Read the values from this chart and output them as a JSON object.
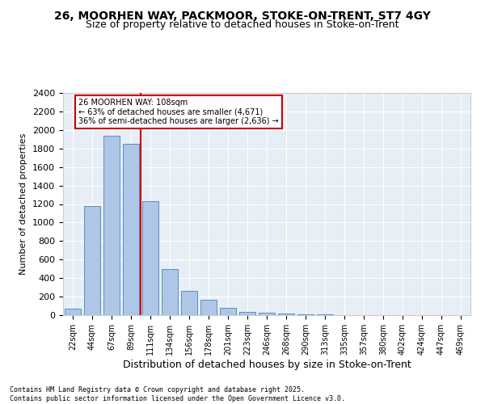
{
  "title": "26, MOORHEN WAY, PACKMOOR, STOKE-ON-TRENT, ST7 4GY",
  "subtitle": "Size of property relative to detached houses in Stoke-on-Trent",
  "xlabel": "Distribution of detached houses by size in Stoke-on-Trent",
  "ylabel": "Number of detached properties",
  "categories": [
    "22sqm",
    "44sqm",
    "67sqm",
    "89sqm",
    "111sqm",
    "134sqm",
    "156sqm",
    "178sqm",
    "201sqm",
    "223sqm",
    "246sqm",
    "268sqm",
    "290sqm",
    "313sqm",
    "335sqm",
    "357sqm",
    "380sqm",
    "402sqm",
    "424sqm",
    "447sqm",
    "469sqm"
  ],
  "values": [
    70,
    1180,
    1940,
    1850,
    1230,
    500,
    265,
    165,
    75,
    35,
    25,
    20,
    5,
    5,
    2,
    2,
    2,
    2,
    2,
    2,
    2
  ],
  "bar_color": "#aec6e8",
  "bar_edge_color": "#5a8fc0",
  "vline_x": 4,
  "vline_color": "#cc0000",
  "annotation_text": "26 MOORHEN WAY: 108sqm\n← 63% of detached houses are smaller (4,671)\n36% of semi-detached houses are larger (2,636) →",
  "annotation_box_color": "#ffffff",
  "annotation_box_edge_color": "#cc0000",
  "ylim": [
    0,
    2400
  ],
  "yticks": [
    0,
    200,
    400,
    600,
    800,
    1000,
    1200,
    1400,
    1600,
    1800,
    2000,
    2200,
    2400
  ],
  "background_color": "#e8eef5",
  "footer_line1": "Contains HM Land Registry data © Crown copyright and database right 2025.",
  "footer_line2": "Contains public sector information licensed under the Open Government Licence v3.0.",
  "title_fontsize": 10,
  "subtitle_fontsize": 9,
  "xlabel_fontsize": 9,
  "ylabel_fontsize": 8
}
